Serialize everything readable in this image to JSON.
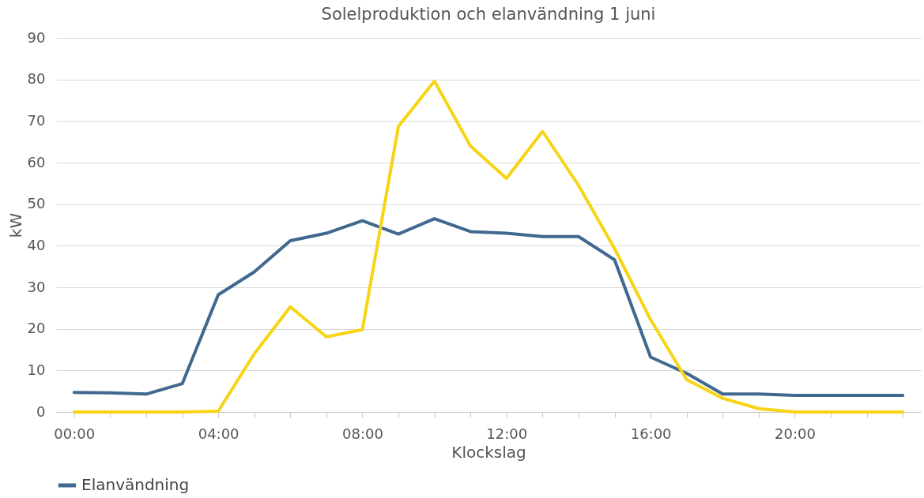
{
  "chart_data": {
    "type": "line",
    "title": "Solelproduktion och elanvändning 1 juni",
    "xlabel": "Klockslag",
    "ylabel": "kW",
    "x": [
      0,
      1,
      2,
      3,
      4,
      5,
      6,
      7,
      8,
      9,
      10,
      11,
      12,
      13,
      14,
      15,
      16,
      17,
      18,
      19,
      20,
      21,
      22,
      23
    ],
    "series": [
      {
        "name": "Elanvändning",
        "color": "#41688f",
        "values": [
          4.7,
          4.6,
          4.3,
          6.8,
          28.2,
          33.7,
          41.2,
          43,
          46,
          42.8,
          46.5,
          43.4,
          43,
          42.2,
          42.2,
          36.6,
          13.2,
          9.3,
          4.3,
          4.3,
          4,
          4,
          4,
          4
        ]
      },
      {
        "color": "#f7d415",
        "values": [
          0,
          0,
          0,
          0,
          0.2,
          14,
          25.3,
          18.1,
          19.8,
          68.7,
          79.6,
          64,
          56.2,
          67.5,
          54.5,
          39.3,
          22.2,
          7.8,
          3.3,
          0.8,
          0,
          0,
          0,
          0
        ]
      }
    ],
    "xlim": [
      -0.5,
      23.5
    ],
    "xticks": [
      {
        "value": 0,
        "label": "00:00"
      },
      {
        "value": 1,
        "label": null
      },
      {
        "value": 2,
        "label": null
      },
      {
        "value": 3,
        "label": null
      },
      {
        "value": 4,
        "label": "04:00"
      },
      {
        "value": 5,
        "label": null
      },
      {
        "value": 6,
        "label": null
      },
      {
        "value": 7,
        "label": null
      },
      {
        "value": 8,
        "label": "08:00"
      },
      {
        "value": 9,
        "label": null
      },
      {
        "value": 10,
        "label": null
      },
      {
        "value": 11,
        "label": null
      },
      {
        "value": 12,
        "label": "12:00"
      },
      {
        "value": 13,
        "label": null
      },
      {
        "value": 14,
        "label": null
      },
      {
        "value": 15,
        "label": null
      },
      {
        "value": 16,
        "label": "16:00"
      },
      {
        "value": 17,
        "label": null
      },
      {
        "value": 18,
        "label": null
      },
      {
        "value": 19,
        "label": null
      },
      {
        "value": 20,
        "label": "20:00"
      },
      {
        "value": 21,
        "label": null
      },
      {
        "value": 22,
        "label": null
      },
      {
        "value": 23,
        "label": null
      }
    ],
    "ylim": [
      0,
      90
    ],
    "yticks": [
      0,
      10,
      20,
      30,
      40,
      50,
      60,
      70,
      80,
      90
    ],
    "grid": "y",
    "legend": "bottom",
    "marker": "none",
    "line_style": "solid"
  }
}
